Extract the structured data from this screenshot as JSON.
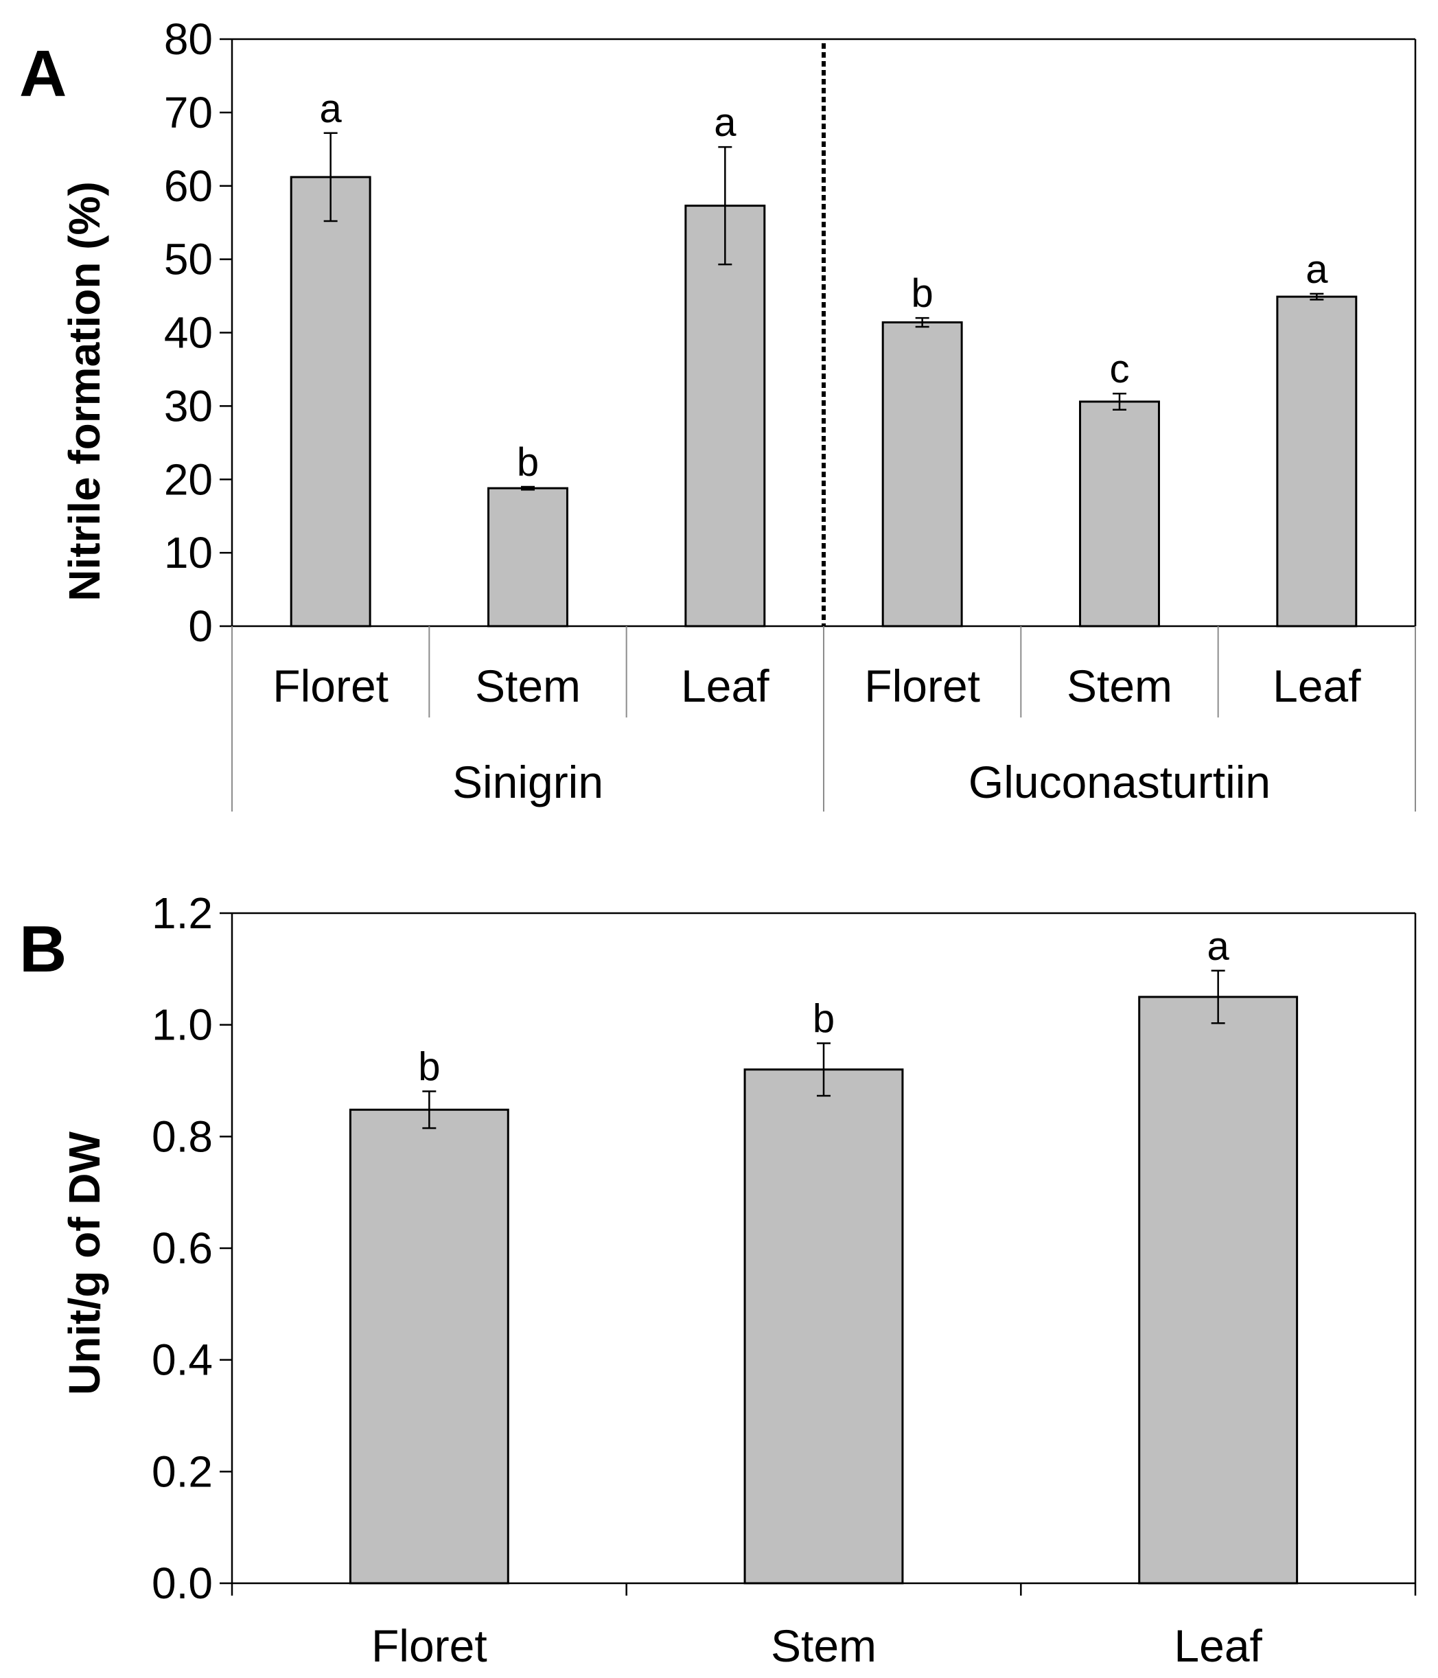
{
  "chart_data": [
    {
      "panel": "A",
      "type": "bar",
      "ylabel": "Nitrile formation (%)",
      "ylim": [
        0,
        80
      ],
      "yticks": [
        0,
        10,
        20,
        30,
        40,
        50,
        60,
        70,
        80
      ],
      "groups": [
        {
          "name": "Sinigrin",
          "categories": [
            "Floret",
            "Stem",
            "Leaf"
          ],
          "values": [
            61.2,
            18.8,
            57.3
          ],
          "errors": [
            6.0,
            0.2,
            8.0
          ],
          "letters": [
            "a",
            "b",
            "a"
          ]
        },
        {
          "name": "Gluconasturtiin",
          "categories": [
            "Floret",
            "Stem",
            "Leaf"
          ],
          "values": [
            41.4,
            30.6,
            44.9
          ],
          "errors": [
            0.6,
            1.1,
            0.4
          ],
          "letters": [
            "b",
            "c",
            "a"
          ]
        }
      ]
    },
    {
      "panel": "B",
      "type": "bar",
      "ylabel": "Unit/g of DW",
      "ylim": [
        0,
        1.2
      ],
      "yticks": [
        "0.0",
        "0.2",
        "0.4",
        "0.6",
        "0.8",
        "1.0",
        "1.2"
      ],
      "categories": [
        "Floret",
        "Stem",
        "Leaf"
      ],
      "values": [
        0.848,
        0.92,
        1.05
      ],
      "errors": [
        0.033,
        0.047,
        0.047
      ],
      "letters": [
        "b",
        "b",
        "a"
      ]
    }
  ]
}
